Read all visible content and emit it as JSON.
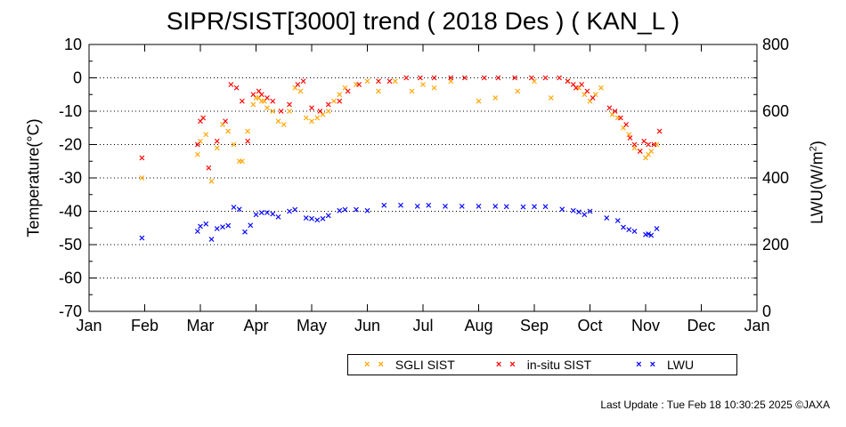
{
  "title": "SIPR/SIST[3000] trend ( 2018 Des ) ( KAN_L )",
  "footer": "Last Update : Tue Feb 18 10:30:25 2025  ©JAXA",
  "colors": {
    "sgli": "#ffa500",
    "insitu": "#ff0000",
    "lwu": "#0000ff",
    "grid": "#000000"
  },
  "chart_data": {
    "type": "scatter",
    "xlabel": "",
    "ylabel": "Temperature(°C)",
    "y2label": "LWU(W/m²)",
    "x_ticks": [
      "Jan",
      "Feb",
      "Mar",
      "Apr",
      "May",
      "Jun",
      "Jul",
      "Aug",
      "Sep",
      "Oct",
      "Nov",
      "Dec",
      "Jan"
    ],
    "xlim": [
      0,
      12
    ],
    "ylim": [
      -70,
      10
    ],
    "y_ticks": [
      10,
      0,
      -10,
      -20,
      -30,
      -40,
      -50,
      -60,
      -70
    ],
    "y2lim": [
      0,
      800
    ],
    "y2_ticks": [
      0,
      200,
      400,
      600,
      800
    ],
    "grid": "horizontal dotted",
    "legend": [
      "SGLI SIST",
      "in-situ SIST",
      "LWU"
    ],
    "legend_position": "bottom",
    "series": [
      {
        "name": "SGLI SIST",
        "axis": "left",
        "x": [
          0.95,
          1.95,
          2.0,
          2.1,
          2.2,
          2.3,
          2.4,
          2.5,
          2.6,
          2.7,
          2.75,
          2.85,
          2.95,
          3.0,
          3.05,
          3.1,
          3.15,
          3.2,
          3.3,
          3.4,
          3.5,
          3.6,
          3.7,
          3.8,
          3.9,
          4.0,
          4.1,
          4.2,
          4.3,
          4.4,
          4.5,
          4.6,
          4.8,
          5.0,
          5.2,
          5.5,
          5.8,
          6.0,
          6.2,
          6.5,
          7.0,
          7.3,
          7.7,
          8.0,
          8.3,
          8.6,
          8.8,
          8.9,
          9.0,
          9.1,
          9.2,
          9.4,
          9.5,
          9.6,
          9.7,
          9.8,
          9.9,
          10.0,
          10.05,
          10.1,
          10.2
        ],
        "y": [
          -30,
          -23,
          -19,
          -17,
          -31,
          -21,
          -14,
          -16,
          -20,
          -25,
          -25,
          -16,
          -8,
          -6,
          -6,
          -7,
          -7,
          -9,
          -10,
          -13,
          -14,
          -10,
          -3,
          -4,
          -12,
          -13,
          -12,
          -11,
          -10,
          -7,
          -5,
          -3,
          -2,
          -1,
          -4,
          -1,
          -4,
          -2,
          -3,
          -1,
          -7,
          -6,
          -4,
          -1,
          -6,
          -1,
          -3,
          -5,
          -7,
          -5,
          -3,
          -11,
          -12,
          -15,
          -17,
          -21,
          -22,
          -24,
          -23,
          -22,
          -20
        ]
      },
      {
        "name": "in-situ SIST",
        "axis": "left",
        "x": [
          0.95,
          1.95,
          2.0,
          2.05,
          2.15,
          2.3,
          2.45,
          2.55,
          2.65,
          2.75,
          2.85,
          2.95,
          3.05,
          3.1,
          3.2,
          3.3,
          3.45,
          3.6,
          3.75,
          3.85,
          4.0,
          4.15,
          4.3,
          4.5,
          4.65,
          4.85,
          5.2,
          5.4,
          5.7,
          5.95,
          6.2,
          6.5,
          6.75,
          7.1,
          7.35,
          7.65,
          7.95,
          8.2,
          8.45,
          8.6,
          8.7,
          8.75,
          8.85,
          8.95,
          9.05,
          9.35,
          9.45,
          9.55,
          9.65,
          9.72,
          9.8,
          9.9,
          9.97,
          10.05,
          10.15,
          10.25
        ],
        "y": [
          -24,
          -20,
          -13,
          -12,
          -27,
          -19,
          -13,
          -2,
          -3,
          -7,
          -19,
          -5,
          -4,
          -5,
          -6,
          -7,
          -10,
          -8,
          -2,
          -1,
          -9,
          -10,
          -8,
          -7,
          -4,
          -2,
          -1,
          -1,
          0,
          0,
          0,
          0,
          0,
          0,
          0,
          0,
          0,
          0,
          0,
          -1,
          -2,
          -3,
          -2,
          -4,
          -6,
          -9,
          -10,
          -12,
          -14,
          -18,
          -20,
          -22,
          -19,
          -20,
          -20,
          -16
        ]
      },
      {
        "name": "LWU",
        "axis": "right",
        "x": [
          0.95,
          1.95,
          2.0,
          2.1,
          2.2,
          2.3,
          2.4,
          2.5,
          2.6,
          2.7,
          2.8,
          2.9,
          3.0,
          3.1,
          3.2,
          3.3,
          3.4,
          3.6,
          3.7,
          3.9,
          4.0,
          4.1,
          4.2,
          4.3,
          4.5,
          4.6,
          4.8,
          5.0,
          5.3,
          5.6,
          5.9,
          6.1,
          6.4,
          6.7,
          7.0,
          7.3,
          7.5,
          7.8,
          8.0,
          8.2,
          8.5,
          8.7,
          8.8,
          8.9,
          9.0,
          9.3,
          9.5,
          9.6,
          9.7,
          9.8,
          10.0,
          10.05,
          10.1,
          10.2
        ],
        "y": [
          220,
          240,
          255,
          262,
          216,
          248,
          253,
          257,
          312,
          306,
          238,
          258,
          290,
          296,
          296,
          292,
          283,
          300,
          305,
          280,
          278,
          274,
          278,
          287,
          302,
          305,
          305,
          302,
          318,
          318,
          315,
          318,
          315,
          315,
          315,
          315,
          314,
          313,
          314,
          314,
          306,
          302,
          298,
          290,
          300,
          280,
          272,
          252,
          245,
          240,
          230,
          232,
          228,
          248
        ]
      }
    ]
  }
}
